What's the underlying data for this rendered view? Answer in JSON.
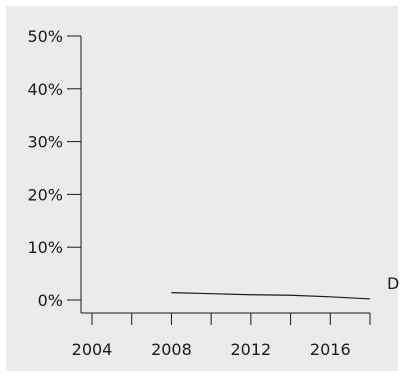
{
  "colors": {
    "background": "#ebebeb",
    "axis": "#1a1a1a",
    "line": "#1a1a1a",
    "text": "#1a1a1a"
  },
  "chart_data": {
    "type": "line",
    "title": "",
    "xlabel": "",
    "ylabel": "",
    "xlim": [
      2003,
      2018
    ],
    "ylim": [
      0,
      50
    ],
    "x_ticks": [
      2004,
      2006,
      2008,
      2010,
      2012,
      2014,
      2016,
      2018
    ],
    "x_tick_labels": [
      {
        "x": 2004,
        "label": "2004"
      },
      {
        "x": 2008,
        "label": "2008"
      },
      {
        "x": 2012,
        "label": "2012"
      },
      {
        "x": 2016,
        "label": "2016"
      }
    ],
    "y_ticks": [
      {
        "y": 0,
        "label": "0%"
      },
      {
        "y": 10,
        "label": "10%"
      },
      {
        "y": 20,
        "label": "20%"
      },
      {
        "y": 30,
        "label": "30%"
      },
      {
        "y": 40,
        "label": "40%"
      },
      {
        "y": 50,
        "label": "50%"
      }
    ],
    "grid": false,
    "series": [
      {
        "name": "D",
        "x": [
          2008,
          2010,
          2012,
          2014,
          2016,
          2018
        ],
        "values": [
          1.4,
          1.2,
          1.0,
          0.9,
          0.6,
          0.2
        ]
      }
    ]
  }
}
